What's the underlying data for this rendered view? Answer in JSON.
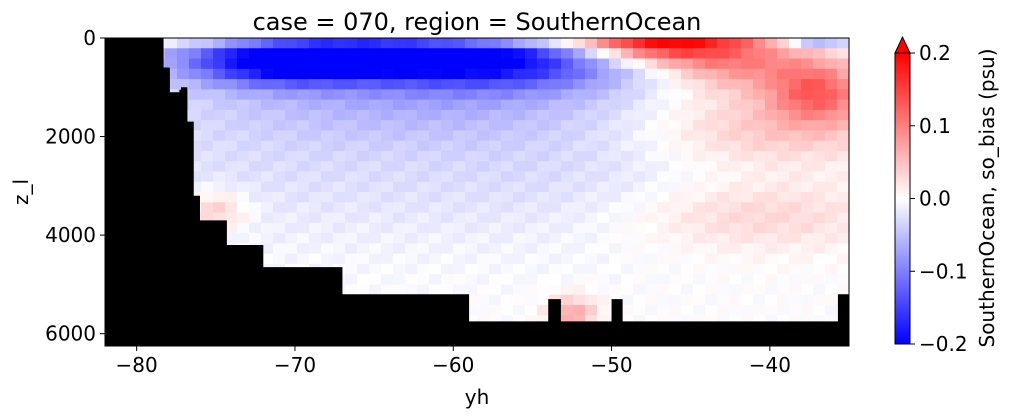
{
  "chart_data": {
    "type": "heatmap",
    "title": "case = 070, region = SouthernOcean",
    "xlabel": "yh",
    "ylabel": "z_l",
    "xlim": [
      -82,
      -35
    ],
    "ylim": [
      6250,
      0
    ],
    "y_inverted": true,
    "xticks": [
      -80,
      -70,
      -60,
      -50,
      -40
    ],
    "xtick_labels": [
      "−80",
      "−70",
      "−60",
      "−50",
      "−40"
    ],
    "yticks": [
      0,
      2000,
      4000,
      6000
    ],
    "ytick_labels": [
      "0",
      "2000",
      "4000",
      "6000"
    ],
    "grid": false,
    "colorbar": {
      "label": "SouthernOcean, so_bias (psu)",
      "vmin": -0.2,
      "vmax": 0.2,
      "extend": "max",
      "cmap": "bwr",
      "ticks": [
        -0.2,
        -0.1,
        0.0,
        0.1,
        0.2
      ],
      "tick_labels": [
        "−0.2",
        "−0.1",
        "0.0",
        "0.1",
        "0.2"
      ]
    },
    "mask_color": "#000000",
    "bottom_profile": [
      {
        "lat": -82.0,
        "depth": 0
      },
      {
        "lat": -78.5,
        "depth": 600
      },
      {
        "lat": -78.0,
        "depth": 1150
      },
      {
        "lat": -77.3,
        "depth": 1050
      },
      {
        "lat": -76.8,
        "depth": 1700
      },
      {
        "lat": -76.4,
        "depth": 3200
      },
      {
        "lat": -76.0,
        "depth": 3700
      },
      {
        "lat": -74.3,
        "depth": 4200
      },
      {
        "lat": -72.0,
        "depth": 4650
      },
      {
        "lat": -70.0,
        "depth": 4650
      },
      {
        "lat": -67.0,
        "depth": 5200
      },
      {
        "lat": -59.0,
        "depth": 5750
      },
      {
        "lat": -54.0,
        "depth": 5300
      },
      {
        "lat": -53.2,
        "depth": 5750
      },
      {
        "lat": -50.0,
        "depth": 5300
      },
      {
        "lat": -49.3,
        "depth": 5750
      },
      {
        "lat": -35.7,
        "depth": 5750
      },
      {
        "lat": -35.7,
        "depth": 5200
      },
      {
        "lat": -35.0,
        "depth": 5200
      }
    ],
    "anomalies": [
      {
        "lat": -66.0,
        "depth": 300,
        "w_lat": 9.0,
        "w_depth": 450,
        "value": -0.19
      },
      {
        "lat": -71.0,
        "depth": 550,
        "w_lat": 6.0,
        "w_depth": 450,
        "value": -0.12
      },
      {
        "lat": -57.0,
        "depth": 500,
        "w_lat": 8.0,
        "w_depth": 550,
        "value": -0.13
      },
      {
        "lat": -62.0,
        "depth": 1100,
        "w_lat": 14.0,
        "w_depth": 900,
        "value": -0.05
      },
      {
        "lat": -69.0,
        "depth": 2400,
        "w_lat": 20.0,
        "w_depth": 1800,
        "value": -0.025
      },
      {
        "lat": -60.0,
        "depth": 0,
        "w_lat": 22.0,
        "w_depth": 90,
        "value": 0.22
      },
      {
        "lat": -47.0,
        "depth": 150,
        "w_lat": 5.0,
        "w_depth": 350,
        "value": 0.16
      },
      {
        "lat": -42.0,
        "depth": 500,
        "w_lat": 5.0,
        "w_depth": 550,
        "value": 0.09
      },
      {
        "lat": -37.0,
        "depth": 1100,
        "w_lat": 3.0,
        "w_depth": 600,
        "value": 0.11
      },
      {
        "lat": -40.0,
        "depth": 1800,
        "w_lat": 8.0,
        "w_depth": 800,
        "value": 0.05
      },
      {
        "lat": -37.0,
        "depth": 100,
        "w_lat": 2.5,
        "w_depth": 120,
        "value": -0.1
      },
      {
        "lat": -41.0,
        "depth": 3600,
        "w_lat": 8.0,
        "w_depth": 700,
        "value": 0.035
      },
      {
        "lat": -52.5,
        "depth": 5600,
        "w_lat": 1.5,
        "w_depth": 350,
        "value": 0.07
      },
      {
        "lat": -75.0,
        "depth": 3500,
        "w_lat": 2.0,
        "w_depth": 400,
        "value": 0.05
      },
      {
        "lat": -52.0,
        "depth": 2600,
        "w_lat": 10.0,
        "w_depth": 1500,
        "value": -0.015
      }
    ]
  }
}
